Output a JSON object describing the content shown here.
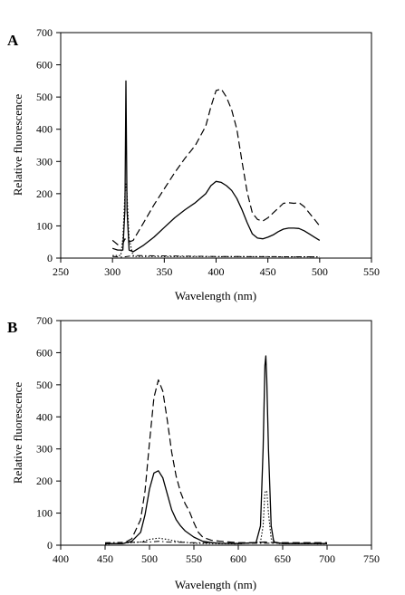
{
  "chart_data": [
    {
      "panel_label": "A",
      "type": "line",
      "xlabel": "Wavelength (nm)",
      "ylabel": "Relative fluorescence",
      "xlim": [
        250,
        550
      ],
      "ylim": [
        0,
        700
      ],
      "xticks": [
        "250",
        "300",
        "350",
        "400",
        "450",
        "500",
        "550"
      ],
      "yticks": [
        "0",
        "100",
        "200",
        "300",
        "400",
        "500",
        "600",
        "700"
      ],
      "grid": false,
      "series": [
        {
          "style": "dashed",
          "x": [
            300,
            305,
            310,
            312,
            314,
            316,
            320,
            330,
            340,
            350,
            360,
            370,
            380,
            390,
            395,
            400,
            405,
            410,
            415,
            420,
            425,
            430,
            435,
            440,
            445,
            450,
            455,
            460,
            465,
            470,
            475,
            480,
            485,
            490,
            495,
            500
          ],
          "y": [
            55,
            42,
            45,
            60,
            52,
            50,
            55,
            110,
            165,
            215,
            265,
            310,
            350,
            410,
            470,
            520,
            525,
            500,
            460,
            400,
            300,
            205,
            140,
            120,
            115,
            125,
            140,
            155,
            170,
            172,
            170,
            172,
            160,
            140,
            120,
            100
          ]
        },
        {
          "style": "solid",
          "x": [
            300,
            305,
            310,
            312,
            313,
            314,
            316,
            320,
            330,
            340,
            350,
            360,
            370,
            380,
            390,
            395,
            400,
            405,
            410,
            415,
            420,
            425,
            430,
            435,
            440,
            445,
            450,
            455,
            460,
            465,
            470,
            475,
            480,
            485,
            490,
            495,
            500
          ],
          "y": [
            30,
            25,
            25,
            150,
            550,
            150,
            25,
            20,
            40,
            65,
            95,
            125,
            150,
            172,
            200,
            225,
            238,
            235,
            225,
            210,
            185,
            150,
            110,
            75,
            62,
            60,
            65,
            72,
            82,
            90,
            93,
            93,
            92,
            85,
            75,
            65,
            55
          ]
        },
        {
          "style": "dotted",
          "x": [
            300,
            308,
            310,
            312,
            313,
            314,
            316,
            320,
            500
          ],
          "y": [
            8,
            8,
            60,
            200,
            230,
            200,
            60,
            5,
            4
          ]
        },
        {
          "style": "dash-dot",
          "x": [
            300,
            310,
            320,
            400,
            500
          ],
          "y": [
            5,
            3,
            8,
            5,
            4
          ]
        }
      ]
    },
    {
      "panel_label": "B",
      "type": "line",
      "xlabel": "Wavelength (nm)",
      "ylabel": "Relative fluorescence",
      "xlim": [
        400,
        750
      ],
      "ylim": [
        0,
        700
      ],
      "xticks": [
        "400",
        "450",
        "500",
        "550",
        "600",
        "650",
        "700",
        "750"
      ],
      "yticks": [
        "0",
        "100",
        "200",
        "300",
        "400",
        "500",
        "600",
        "700"
      ],
      "grid": false,
      "series": [
        {
          "style": "dashed",
          "x": [
            450,
            470,
            480,
            490,
            495,
            500,
            505,
            510,
            515,
            520,
            525,
            530,
            535,
            540,
            545,
            550,
            555,
            560,
            570,
            580,
            590,
            600,
            610,
            620,
            630,
            640,
            650,
            700
          ],
          "y": [
            5,
            5,
            20,
            80,
            170,
            320,
            460,
            515,
            480,
            390,
            290,
            215,
            165,
            130,
            105,
            70,
            40,
            25,
            15,
            12,
            10,
            8,
            8,
            8,
            10,
            8,
            8,
            8
          ]
        },
        {
          "style": "solid",
          "x": [
            450,
            470,
            480,
            490,
            495,
            500,
            505,
            510,
            515,
            520,
            525,
            530,
            535,
            540,
            545,
            550,
            560,
            570,
            580,
            600,
            620,
            625,
            628,
            630,
            631,
            632,
            634,
            637,
            640,
            650,
            700
          ],
          "y": [
            5,
            5,
            12,
            40,
            95,
            175,
            225,
            232,
            210,
            160,
            110,
            80,
            60,
            45,
            35,
            25,
            12,
            8,
            6,
            5,
            8,
            60,
            300,
            560,
            590,
            520,
            300,
            60,
            10,
            5,
            5
          ]
        },
        {
          "style": "dotted",
          "x": [
            450,
            490,
            500,
            510,
            520,
            530,
            550,
            600,
            625,
            628,
            630,
            632,
            634,
            637,
            645,
            700
          ],
          "y": [
            3,
            10,
            18,
            22,
            18,
            12,
            6,
            4,
            10,
            60,
            165,
            170,
            100,
            20,
            5,
            4
          ]
        },
        {
          "style": "dash-dot",
          "x": [
            450,
            500,
            510,
            520,
            550,
            600,
            650,
            700
          ],
          "y": [
            8,
            10,
            12,
            10,
            8,
            6,
            6,
            6
          ]
        }
      ]
    }
  ]
}
